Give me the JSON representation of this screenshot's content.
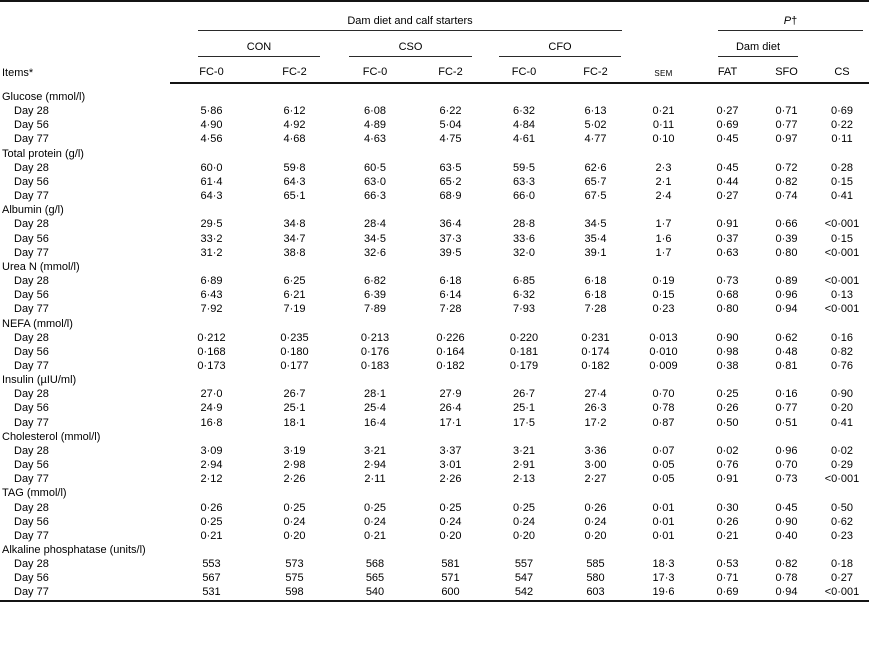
{
  "table": {
    "header": {
      "items_label": "Items*",
      "top_group": "Dam diet and calf starters",
      "p_label": "P",
      "p_dagger": "†",
      "diet_groups": [
        "CON",
        "CSO",
        "CFO"
      ],
      "dam_diet_label": "Dam diet",
      "fc_labels": [
        "FC-0",
        "FC-2",
        "FC-0",
        "FC-2",
        "FC-0",
        "FC-2"
      ],
      "sem_label": "SEM",
      "p_cols": [
        "FAT",
        "SFO",
        "CS"
      ]
    },
    "sections": [
      {
        "name": "Glucose (mmol/l)",
        "rows": [
          {
            "label": "Day 28",
            "values": [
              "5·86",
              "6·12",
              "6·08",
              "6·22",
              "6·32",
              "6·13",
              "0·21",
              "0·27",
              "0·71",
              "0·69"
            ]
          },
          {
            "label": "Day 56",
            "values": [
              "4·90",
              "4·92",
              "4·89",
              "5·04",
              "4·84",
              "5·02",
              "0·11",
              "0·69",
              "0·77",
              "0·22"
            ]
          },
          {
            "label": "Day 77",
            "values": [
              "4·56",
              "4·68",
              "4·63",
              "4·75",
              "4·61",
              "4·77",
              "0·10",
              "0·45",
              "0·97",
              "0·11"
            ]
          }
        ]
      },
      {
        "name": "Total protein (g/l)",
        "rows": [
          {
            "label": "Day 28",
            "values": [
              "60·0",
              "59·8",
              "60·5",
              "63·5",
              "59·5",
              "62·6",
              "2·3",
              "0·45",
              "0·72",
              "0·28"
            ]
          },
          {
            "label": "Day 56",
            "values": [
              "61·4",
              "64·3",
              "63·0",
              "65·2",
              "63·3",
              "65·7",
              "2·1",
              "0·44",
              "0·82",
              "0·15"
            ]
          },
          {
            "label": "Day 77",
            "values": [
              "64·3",
              "65·1",
              "66·3",
              "68·9",
              "66·0",
              "67·5",
              "2·4",
              "0·27",
              "0·74",
              "0·41"
            ]
          }
        ]
      },
      {
        "name": "Albumin (g/l)",
        "rows": [
          {
            "label": "Day 28",
            "values": [
              "29·5",
              "34·8",
              "28·4",
              "36·4",
              "28·8",
              "34·5",
              "1·7",
              "0·91",
              "0·66",
              "<0·001"
            ]
          },
          {
            "label": "Day 56",
            "values": [
              "33·2",
              "34·7",
              "34·5",
              "37·3",
              "33·6",
              "35·4",
              "1·6",
              "0·37",
              "0·39",
              "0·15"
            ]
          },
          {
            "label": "Day 77",
            "values": [
              "31·2",
              "38·8",
              "32·6",
              "39·5",
              "32·0",
              "39·1",
              "1·7",
              "0·63",
              "0·80",
              "<0·001"
            ]
          }
        ]
      },
      {
        "name": "Urea N (mmol/l)",
        "rows": [
          {
            "label": "Day 28",
            "values": [
              "6·89",
              "6·25",
              "6·82",
              "6·18",
              "6·85",
              "6·18",
              "0·19",
              "0·73",
              "0·89",
              "<0·001"
            ]
          },
          {
            "label": "Day 56",
            "values": [
              "6·43",
              "6·21",
              "6·39",
              "6·14",
              "6·32",
              "6·18",
              "0·15",
              "0·68",
              "0·96",
              "0·13"
            ]
          },
          {
            "label": "Day 77",
            "values": [
              "7·92",
              "7·19",
              "7·89",
              "7·28",
              "7·93",
              "7·28",
              "0·23",
              "0·80",
              "0·94",
              "<0·001"
            ]
          }
        ]
      },
      {
        "name": "NEFA (mmol/l)",
        "rows": [
          {
            "label": "Day 28",
            "values": [
              "0·212",
              "0·235",
              "0·213",
              "0·226",
              "0·220",
              "0·231",
              "0·013",
              "0·90",
              "0·62",
              "0·16"
            ]
          },
          {
            "label": "Day 56",
            "values": [
              "0·168",
              "0·180",
              "0·176",
              "0·164",
              "0·181",
              "0·174",
              "0·010",
              "0·98",
              "0·48",
              "0·82"
            ]
          },
          {
            "label": "Day 77",
            "values": [
              "0·173",
              "0·177",
              "0·183",
              "0·182",
              "0·179",
              "0·182",
              "0·009",
              "0·38",
              "0·81",
              "0·76"
            ]
          }
        ]
      },
      {
        "name": "Insulin (µIU/ml)",
        "rows": [
          {
            "label": "Day 28",
            "values": [
              "27·0",
              "26·7",
              "28·1",
              "27·9",
              "26·7",
              "27·4",
              "0·70",
              "0·25",
              "0·16",
              "0·90"
            ]
          },
          {
            "label": "Day 56",
            "values": [
              "24·9",
              "25·1",
              "25·4",
              "26·4",
              "25·1",
              "26·3",
              "0·78",
              "0·26",
              "0·77",
              "0·20"
            ]
          },
          {
            "label": "Day 77",
            "values": [
              "16·8",
              "18·1",
              "16·4",
              "17·1",
              "17·5",
              "17·2",
              "0·87",
              "0·50",
              "0·51",
              "0·41"
            ]
          }
        ]
      },
      {
        "name": "Cholesterol (mmol/l)",
        "rows": [
          {
            "label": "Day 28",
            "values": [
              "3·09",
              "3·19",
              "3·21",
              "3·37",
              "3·21",
              "3·36",
              "0·07",
              "0·02",
              "0·96",
              "0·02"
            ]
          },
          {
            "label": "Day 56",
            "values": [
              "2·94",
              "2·98",
              "2·94",
              "3·01",
              "2·91",
              "3·00",
              "0·05",
              "0·76",
              "0·70",
              "0·29"
            ]
          },
          {
            "label": "Day 77",
            "values": [
              "2·12",
              "2·26",
              "2·11",
              "2·26",
              "2·13",
              "2·27",
              "0·05",
              "0·91",
              "0·73",
              "<0·001"
            ]
          }
        ]
      },
      {
        "name": "TAG (mmol/l)",
        "rows": [
          {
            "label": "Day 28",
            "values": [
              "0·26",
              "0·25",
              "0·25",
              "0·25",
              "0·25",
              "0·26",
              "0·01",
              "0·30",
              "0·45",
              "0·50"
            ]
          },
          {
            "label": "Day 56",
            "values": [
              "0·25",
              "0·24",
              "0·24",
              "0·24",
              "0·24",
              "0·24",
              "0·01",
              "0·26",
              "0·90",
              "0·62"
            ]
          },
          {
            "label": "Day 77",
            "values": [
              "0·21",
              "0·20",
              "0·21",
              "0·20",
              "0·20",
              "0·20",
              "0·01",
              "0·21",
              "0·40",
              "0·23"
            ]
          }
        ]
      },
      {
        "name": "Alkaline phosphatase (units/l)",
        "rows": [
          {
            "label": "Day 28",
            "values": [
              "553",
              "573",
              "568",
              "581",
              "557",
              "585",
              "18·3",
              "0·53",
              "0·82",
              "0·18"
            ]
          },
          {
            "label": "Day 56",
            "values": [
              "567",
              "575",
              "565",
              "571",
              "547",
              "580",
              "17·3",
              "0·71",
              "0·78",
              "0·27"
            ]
          },
          {
            "label": "Day 77",
            "values": [
              "531",
              "598",
              "540",
              "600",
              "542",
              "603",
              "19·6",
              "0·69",
              "0·94",
              "<0·001"
            ]
          }
        ]
      }
    ]
  }
}
